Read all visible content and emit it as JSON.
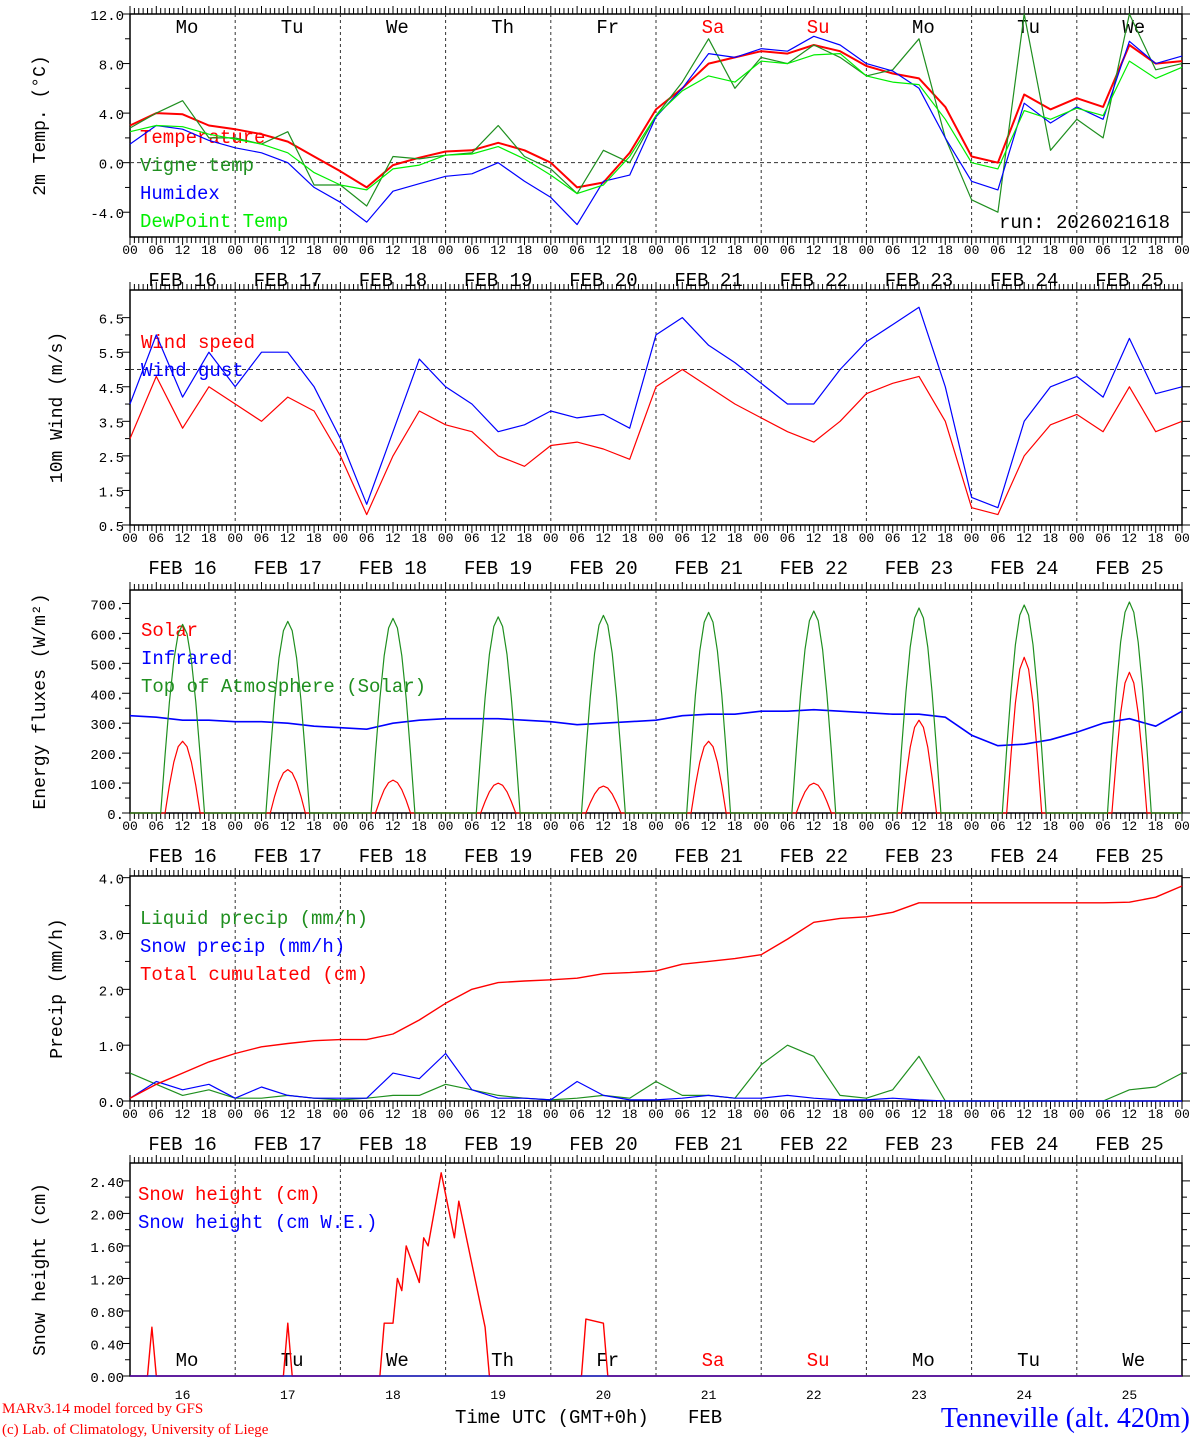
{
  "x_axis": {
    "hours_total": 240,
    "hour_labels": [
      "00",
      "06",
      "12",
      "18"
    ],
    "final_hour_label": "00",
    "date_labels": [
      "FEB 16",
      "FEB 17",
      "FEB 18",
      "FEB 19",
      "FEB 20",
      "FEB 21",
      "FEB 22",
      "FEB 23",
      "FEB 24",
      "FEB 25"
    ],
    "day_names": [
      "Mo",
      "Tu",
      "We",
      "Th",
      "Fr",
      "Sa",
      "Su",
      "Mo",
      "Tu",
      "We"
    ],
    "weekend_flags": [
      false,
      false,
      false,
      false,
      false,
      true,
      true,
      false,
      false,
      false
    ],
    "day_numbers": [
      "16",
      "17",
      "18",
      "19",
      "20",
      "21",
      "22",
      "23",
      "24",
      "25"
    ],
    "title": "Time UTC (GMT+0h)",
    "month": "FEB"
  },
  "colors": {
    "red": "#ff0000",
    "darkgreen": "#1f8f1f",
    "blue": "#0000ff",
    "lightgreen": "#00ee00",
    "weekend": "#ff0000"
  },
  "chart_data": [
    {
      "type": "line",
      "ylabel": "2m Temp. (°C)",
      "ylim": [
        -6,
        12
      ],
      "yticks": [
        "12.0",
        "8.0",
        "4.0",
        "0.0",
        "-4.0"
      ],
      "ref_line": 0,
      "step_hours": 6,
      "annotation": "run: 2026021618",
      "series": [
        {
          "name": "Temperature",
          "color": "#ff0000",
          "width": 2,
          "values": [
            3.0,
            4.0,
            3.9,
            3.0,
            2.7,
            2.3,
            1.7,
            0.5,
            -0.7,
            -2.0,
            -0.2,
            0.4,
            0.9,
            1.0,
            1.6,
            1.0,
            0.0,
            -2.0,
            -1.6,
            0.8,
            4.3,
            6.0,
            8.0,
            8.5,
            9.0,
            8.8,
            9.5,
            9.0,
            7.8,
            7.2,
            6.8,
            4.5,
            0.5,
            0.0,
            5.5,
            4.3,
            5.2,
            4.5,
            9.5,
            8.0,
            8.2
          ]
        },
        {
          "name": "Vigne temp",
          "color": "#1f8f1f",
          "width": 1.2,
          "values": [
            2.8,
            4.0,
            5.0,
            2.0,
            2.0,
            1.5,
            2.5,
            -1.8,
            -1.8,
            -3.5,
            0.5,
            0.3,
            0.6,
            0.8,
            3.0,
            0.5,
            -0.5,
            -2.5,
            1.0,
            0.0,
            3.8,
            6.5,
            10.0,
            6.0,
            8.5,
            8.0,
            9.5,
            8.5,
            7.0,
            7.5,
            10.0,
            2.0,
            -3.0,
            -4.0,
            12.0,
            1.0,
            3.5,
            2.0,
            12.0,
            7.5,
            8.0
          ]
        },
        {
          "name": "Humidex",
          "color": "#0000ff",
          "width": 1.2,
          "values": [
            1.5,
            3.0,
            2.7,
            1.8,
            1.2,
            0.8,
            0.0,
            -2.0,
            -3.2,
            -4.8,
            -2.3,
            -1.7,
            -1.1,
            -0.9,
            0.0,
            -1.5,
            -2.8,
            -5.0,
            -1.5,
            -1.0,
            3.7,
            6.0,
            8.8,
            8.5,
            9.2,
            9.0,
            10.2,
            9.5,
            8.0,
            7.4,
            6.0,
            2.0,
            -1.5,
            -2.2,
            4.8,
            3.2,
            4.5,
            3.5,
            9.8,
            8.0,
            8.6
          ]
        },
        {
          "name": "DewPoint Temp",
          "color": "#00ee00",
          "width": 1.2,
          "values": [
            2.5,
            3.0,
            2.9,
            2.3,
            1.9,
            1.5,
            0.8,
            -0.8,
            -1.8,
            -2.2,
            -0.5,
            -0.2,
            0.6,
            0.7,
            1.3,
            0.3,
            -1.0,
            -2.5,
            -1.8,
            0.5,
            3.8,
            5.8,
            7.0,
            6.5,
            8.2,
            8.0,
            8.7,
            8.8,
            7.0,
            6.5,
            6.3,
            3.5,
            0.0,
            -0.5,
            4.2,
            3.5,
            4.4,
            3.8,
            8.2,
            6.8,
            7.7
          ]
        }
      ]
    },
    {
      "type": "line",
      "ylabel": "10m Wind (m/s)",
      "ylim": [
        0.5,
        7.3
      ],
      "yticks": [
        "6.5",
        "5.5",
        "4.5",
        "3.5",
        "2.5",
        "1.5",
        "0.5"
      ],
      "ref_line": 5.0,
      "step_hours": 6,
      "series": [
        {
          "name": "Wind speed",
          "color": "#ff0000",
          "width": 1.2,
          "values": [
            3.0,
            4.8,
            3.3,
            4.5,
            4.0,
            3.5,
            4.2,
            3.8,
            2.5,
            0.8,
            2.5,
            3.8,
            3.4,
            3.2,
            2.5,
            2.2,
            2.8,
            2.9,
            2.7,
            2.4,
            4.5,
            5.0,
            4.5,
            4.0,
            3.6,
            3.2,
            2.9,
            3.5,
            4.3,
            4.6,
            4.8,
            3.5,
            1.0,
            0.8,
            2.5,
            3.4,
            3.7,
            3.2,
            4.5,
            3.2,
            3.5
          ]
        },
        {
          "name": "Wind gust",
          "color": "#0000ff",
          "width": 1.2,
          "values": [
            4.0,
            6.0,
            4.2,
            5.5,
            4.5,
            5.5,
            5.5,
            4.5,
            3.0,
            1.1,
            3.2,
            5.3,
            4.5,
            4.0,
            3.2,
            3.4,
            3.8,
            3.6,
            3.7,
            3.3,
            6.0,
            6.5,
            5.7,
            5.2,
            4.6,
            4.0,
            4.0,
            5.0,
            5.8,
            6.3,
            6.8,
            4.5,
            1.3,
            1.0,
            3.5,
            4.5,
            4.8,
            4.2,
            5.9,
            4.3,
            4.5
          ]
        }
      ]
    },
    {
      "type": "line",
      "ylabel": "Energy fluxes (W/m²)",
      "ylim": [
        0,
        745
      ],
      "yticks": [
        "700.",
        "600.",
        "500.",
        "400.",
        "300.",
        "200.",
        "100.",
        "0."
      ],
      "step_hours": 6,
      "series": [
        {
          "name": "Solar",
          "color": "#ff0000",
          "width": 1.2,
          "daily_peaks": [
            240,
            145,
            110,
            100,
            90,
            240,
            100,
            310,
            520,
            470
          ],
          "day_window_hours": [
            8,
            16
          ]
        },
        {
          "name": "Infrared",
          "color": "#0000ff",
          "width": 1.6,
          "values": [
            325,
            320,
            310,
            310,
            305,
            305,
            300,
            290,
            285,
            280,
            300,
            310,
            315,
            315,
            315,
            310,
            305,
            295,
            300,
            305,
            310,
            325,
            330,
            330,
            340,
            340,
            345,
            340,
            335,
            330,
            330,
            320,
            260,
            225,
            230,
            245,
            270,
            300,
            315,
            290,
            340
          ]
        },
        {
          "name": "Top of Atmosphere (Solar)",
          "color": "#1f8f1f",
          "width": 1.2,
          "daily_peaks": [
            630,
            640,
            650,
            655,
            660,
            670,
            675,
            685,
            695,
            705
          ],
          "day_window_hours": [
            7,
            17
          ]
        }
      ]
    },
    {
      "type": "line",
      "ylabel": "Precip (mm/h)",
      "ylim": [
        0,
        4.03
      ],
      "yticks": [
        "4.0",
        "3.0",
        "2.0",
        "1.0",
        "0.0"
      ],
      "step_hours": 6,
      "series": [
        {
          "name": "Liquid precip (mm/h)",
          "color": "#1f8f1f",
          "width": 1.2,
          "values": [
            0.5,
            0.3,
            0.1,
            0.2,
            0.05,
            0.05,
            0.1,
            0.05,
            0.02,
            0.05,
            0.1,
            0.1,
            0.3,
            0.2,
            0.1,
            0.05,
            0.02,
            0.05,
            0.1,
            0.05,
            0.35,
            0.1,
            0.1,
            0.05,
            0.65,
            1.0,
            0.8,
            0.1,
            0.05,
            0.2,
            0.8,
            0.0,
            0,
            0,
            0,
            0,
            0,
            0,
            0.2,
            0.25,
            0.5
          ]
        },
        {
          "name": "Snow precip (mm/h)",
          "color": "#0000ff",
          "width": 1.2,
          "values": [
            0.05,
            0.35,
            0.2,
            0.3,
            0.05,
            0.25,
            0.1,
            0.05,
            0.05,
            0.05,
            0.5,
            0.4,
            0.85,
            0.2,
            0.05,
            0.05,
            0.02,
            0.35,
            0.1,
            0.02,
            0.02,
            0.05,
            0.1,
            0.05,
            0.05,
            0.1,
            0.05,
            0.02,
            0.02,
            0.05,
            0.02,
            0,
            0,
            0,
            0,
            0,
            0,
            0,
            0,
            0,
            0
          ]
        },
        {
          "name": "Total cumulated (cm)",
          "color": "#ff0000",
          "width": 1.4,
          "values": [
            0.05,
            0.3,
            0.5,
            0.7,
            0.85,
            0.97,
            1.03,
            1.08,
            1.1,
            1.1,
            1.2,
            1.45,
            1.75,
            2.0,
            2.12,
            2.15,
            2.17,
            2.2,
            2.28,
            2.3,
            2.33,
            2.45,
            2.5,
            2.55,
            2.62,
            2.9,
            3.2,
            3.27,
            3.3,
            3.38,
            3.55,
            3.55,
            3.55,
            3.55,
            3.55,
            3.55,
            3.55,
            3.55,
            3.56,
            3.65,
            3.85
          ]
        }
      ]
    },
    {
      "type": "line",
      "ylabel": "Snow height (cm)",
      "ylim": [
        0,
        2.62
      ],
      "yticks": [
        "2.40",
        "2.00",
        "1.60",
        "1.20",
        "0.80",
        "0.40",
        "0.00"
      ],
      "series": [
        {
          "name": "Snow height (cm)",
          "color": "#ff0000",
          "width": 1.4,
          "points": [
            [
              0,
              0
            ],
            [
              4,
              0
            ],
            [
              5,
              0.6
            ],
            [
              6,
              0
            ],
            [
              35,
              0
            ],
            [
              36,
              0.65
            ],
            [
              37,
              0
            ],
            [
              57,
              0
            ],
            [
              58,
              0.65
            ],
            [
              60,
              0.65
            ],
            [
              61,
              1.2
            ],
            [
              62,
              1.05
            ],
            [
              63,
              1.6
            ],
            [
              66,
              1.15
            ],
            [
              67,
              1.7
            ],
            [
              68,
              1.6
            ],
            [
              71,
              2.5
            ],
            [
              74,
              1.7
            ],
            [
              75,
              2.15
            ],
            [
              81,
              0.6
            ],
            [
              82,
              0
            ],
            [
              103,
              0
            ],
            [
              104,
              0.7
            ],
            [
              108,
              0.65
            ],
            [
              109,
              0
            ],
            [
              240,
              0
            ]
          ]
        },
        {
          "name": "Snow height (cm W.E.)",
          "color": "#0000ff",
          "width": 1,
          "points": [
            [
              0,
              0
            ],
            [
              240,
              0
            ]
          ]
        }
      ]
    }
  ],
  "footer": {
    "model": "MARv3.14 model forced by GFS",
    "copyright": "(c) Lab. of Climatology, University of Liege",
    "station": "Tenneville (alt. 420m)"
  }
}
